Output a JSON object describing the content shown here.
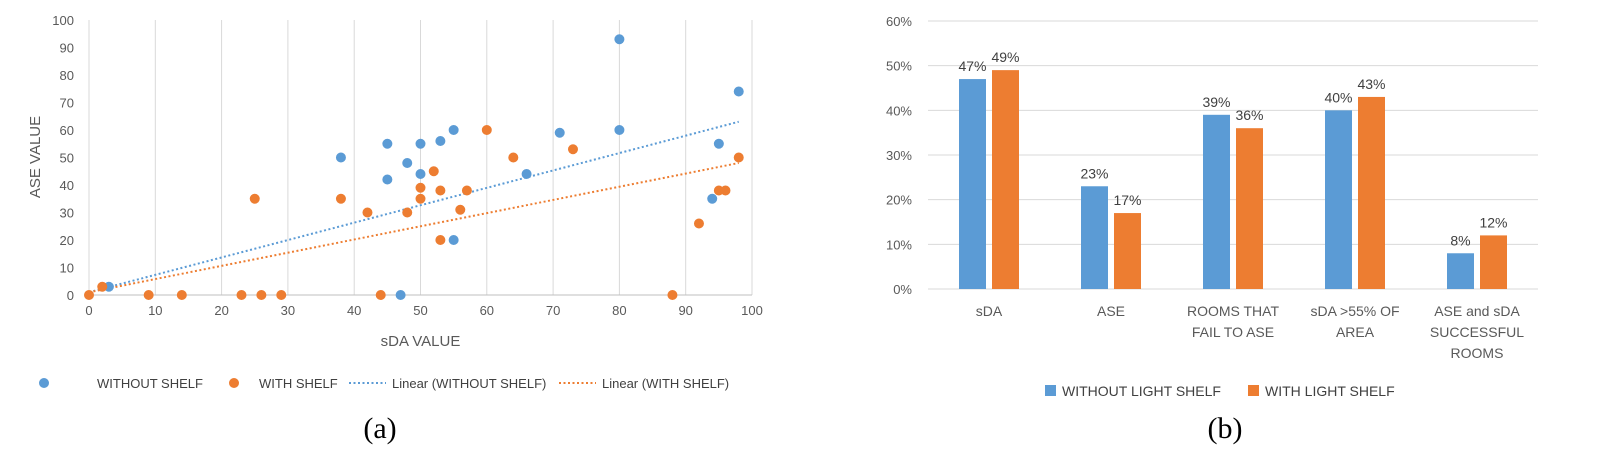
{
  "chart_data": [
    {
      "type": "scatter",
      "panel_label": "(a)",
      "xlabel": "sDA VALUE",
      "ylabel": "ASE VALUE",
      "xlim": [
        0,
        100
      ],
      "ylim": [
        0,
        100
      ],
      "xticks": [
        "0",
        "10",
        "20",
        "30",
        "40",
        "50",
        "60",
        "70",
        "80",
        "90",
        "100"
      ],
      "yticks": [
        "0",
        "10",
        "20",
        "30",
        "40",
        "50",
        "60",
        "70",
        "80",
        "90",
        "100"
      ],
      "grid": "vertical",
      "legend_position": "bottom",
      "series": [
        {
          "name": "WITHOUT SHELF",
          "color": "#5B9BD5",
          "points": [
            [
              3,
              3
            ],
            [
              38,
              50
            ],
            [
              45,
              55
            ],
            [
              45,
              42
            ],
            [
              47,
              0
            ],
            [
              48,
              48
            ],
            [
              50,
              55
            ],
            [
              50,
              44
            ],
            [
              53,
              56
            ],
            [
              55,
              60
            ],
            [
              55,
              20
            ],
            [
              66,
              44
            ],
            [
              71,
              59
            ],
            [
              80,
              93
            ],
            [
              80,
              60
            ],
            [
              94,
              35
            ],
            [
              95,
              55
            ],
            [
              98,
              74
            ]
          ]
        },
        {
          "name": "WITH SHELF",
          "color": "#ED7D31",
          "points": [
            [
              0,
              0
            ],
            [
              2,
              3
            ],
            [
              9,
              0
            ],
            [
              14,
              0
            ],
            [
              23,
              0
            ],
            [
              25,
              35
            ],
            [
              26,
              0
            ],
            [
              29,
              0
            ],
            [
              38,
              35
            ],
            [
              42,
              30
            ],
            [
              44,
              0
            ],
            [
              48,
              30
            ],
            [
              50,
              39
            ],
            [
              50,
              35
            ],
            [
              52,
              45
            ],
            [
              53,
              38
            ],
            [
              53,
              20
            ],
            [
              56,
              31
            ],
            [
              57,
              38
            ],
            [
              60,
              60
            ],
            [
              64,
              50
            ],
            [
              73,
              53
            ],
            [
              88,
              0
            ],
            [
              92,
              26
            ],
            [
              95,
              38
            ],
            [
              96,
              38
            ],
            [
              98,
              50
            ]
          ]
        }
      ],
      "trendlines": [
        {
          "name": "Linear (WITHOUT SHELF)",
          "color": "#5B9BD5",
          "from": [
            0,
            1
          ],
          "to": [
            98,
            63
          ]
        },
        {
          "name": "Linear (WITH SHELF)",
          "color": "#ED7D31",
          "from": [
            0,
            1
          ],
          "to": [
            98,
            48
          ]
        }
      ]
    },
    {
      "type": "bar",
      "panel_label": "(b)",
      "categories": [
        "sDA",
        "ASE",
        "ROOMS THAT FAIL TO ASE",
        "sDA >55% OF AREA",
        "ASE and sDA SUCCESSFUL ROOMS"
      ],
      "ylim": [
        0,
        60
      ],
      "yticks": [
        "0%",
        "10%",
        "20%",
        "30%",
        "40%",
        "50%",
        "60%"
      ],
      "grid": "horizontal",
      "legend_position": "bottom",
      "series": [
        {
          "name": "WITHOUT LIGHT SHELF",
          "color": "#5B9BD5",
          "values": [
            47,
            23,
            39,
            40,
            8
          ],
          "labels": [
            "47%",
            "23%",
            "39%",
            "40%",
            "8%"
          ]
        },
        {
          "name": "WITH LIGHT SHELF",
          "color": "#ED7D31",
          "values": [
            49,
            17,
            36,
            43,
            12
          ],
          "labels": [
            "49%",
            "17%",
            "36%",
            "43%",
            "12%"
          ]
        }
      ]
    }
  ]
}
